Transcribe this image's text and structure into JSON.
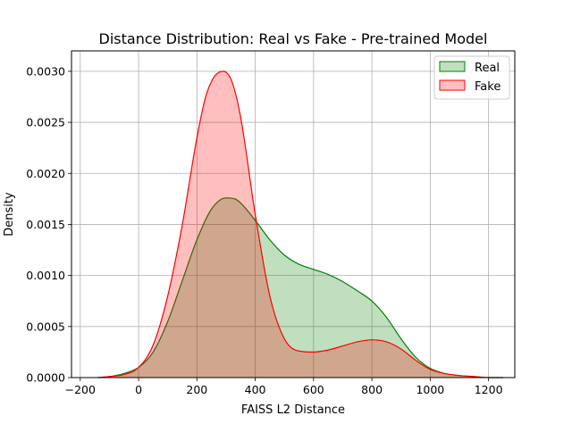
{
  "chart_data": {
    "type": "area",
    "title": "Distance Distribution: Real vs Fake - Pre-trained Model",
    "xlabel": "FAISS L2 Distance",
    "ylabel": "Density",
    "xlim": [
      -230,
      1290
    ],
    "ylim": [
      0,
      0.0032
    ],
    "xticks": [
      -200,
      0,
      200,
      400,
      600,
      800,
      1000,
      1200
    ],
    "xtick_labels": [
      "−200",
      "0",
      "200",
      "400",
      "600",
      "800",
      "1000",
      "1200"
    ],
    "yticks": [
      0,
      0.0005,
      0.001,
      0.0015,
      0.002,
      0.0025,
      0.003
    ],
    "ytick_labels": [
      "0.0000",
      "0.0005",
      "0.0010",
      "0.0015",
      "0.0020",
      "0.0025",
      "0.0030"
    ],
    "grid": true,
    "legend_position": "top-right",
    "series": [
      {
        "name": "Real",
        "line_color": "#008000",
        "fill_color": "#008000",
        "fill_opacity": 0.25,
        "x": [
          -140,
          -100,
          -50,
          0,
          50,
          100,
          150,
          200,
          250,
          300,
          330,
          350,
          400,
          450,
          500,
          550,
          600,
          650,
          700,
          750,
          800,
          850,
          900,
          950,
          1000,
          1050,
          1100,
          1150,
          1200,
          1250
        ],
        "y": [
          0.0,
          1e-05,
          4e-05,
          0.0001,
          0.00025,
          0.00055,
          0.00095,
          0.00135,
          0.00165,
          0.00176,
          0.00175,
          0.00171,
          0.00154,
          0.00135,
          0.0012,
          0.00111,
          0.00106,
          0.00101,
          0.00094,
          0.00085,
          0.00075,
          0.00059,
          0.00038,
          0.0002,
          9e-05,
          4e-05,
          2e-05,
          1e-05,
          0.0,
          0.0
        ]
      },
      {
        "name": "Fake",
        "line_color": "#ff0000",
        "fill_color": "#ff0000",
        "fill_opacity": 0.25,
        "x": [
          -140,
          -100,
          -50,
          0,
          50,
          100,
          150,
          200,
          230,
          260,
          290,
          320,
          350,
          400,
          450,
          500,
          550,
          600,
          650,
          700,
          750,
          800,
          850,
          900,
          950,
          1000,
          1050,
          1100,
          1150,
          1200,
          1250
        ],
        "y": [
          0.0,
          1e-05,
          3e-05,
          0.0001,
          0.00032,
          0.0008,
          0.0015,
          0.00235,
          0.00275,
          0.00295,
          0.003,
          0.0029,
          0.00255,
          0.0016,
          0.0008,
          0.00038,
          0.00026,
          0.00025,
          0.00027,
          0.00031,
          0.00035,
          0.00037,
          0.00035,
          0.00028,
          0.00017,
          8e-05,
          4e-05,
          2e-05,
          1e-05,
          0.0,
          0.0
        ]
      }
    ]
  }
}
